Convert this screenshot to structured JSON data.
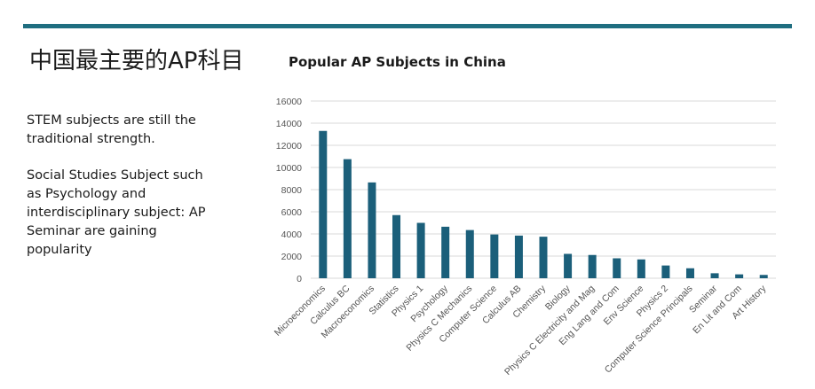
{
  "slide": {
    "title": "中国最主要的AP科目",
    "paragraph1": "STEM subjects are still the traditional strength.",
    "paragraph2": "Social Studies Subject such as Psychology and interdisciplinary subject: AP Seminar are gaining popularity"
  },
  "colors": {
    "accent": "#1f6e80",
    "bar": "#1b5f7a",
    "grid": "#d9d9d9"
  },
  "chart_data": {
    "type": "bar",
    "title": "Popular AP Subjects in China",
    "xlabel": "",
    "ylabel": "",
    "ylim": [
      0,
      16000
    ],
    "yticks": [
      0,
      2000,
      4000,
      6000,
      8000,
      10000,
      12000,
      14000,
      16000
    ],
    "grid": true,
    "legend": "none",
    "categories": [
      "Microeconomics",
      "Calculus BC",
      "Macroeconomics",
      "Statistics",
      "Physics 1",
      "Psychology",
      "Physics C Mechanics",
      "Computer Science",
      "Calculus AB",
      "Chemistry",
      "Biology",
      "Physics C Electricity and Mag",
      "Eng Lang and Com",
      "Env Science",
      "Physics 2",
      "Computer Science Principals",
      "Seminar",
      "En Lit and Com",
      "Art History"
    ],
    "values": [
      13300,
      10750,
      8650,
      5700,
      5000,
      4650,
      4350,
      3950,
      3850,
      3750,
      2200,
      2100,
      1800,
      1700,
      1150,
      900,
      450,
      350,
      300
    ]
  }
}
